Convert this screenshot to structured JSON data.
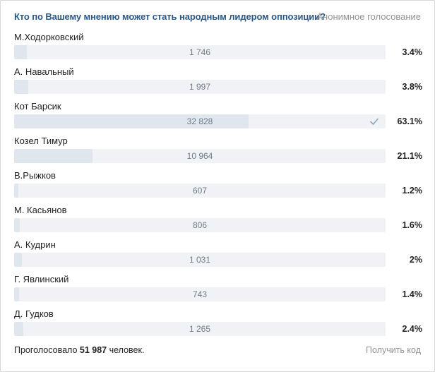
{
  "poll": {
    "question": "Кто по Вашему мнению может стать народным лидером оппозиции?",
    "type_label": "Анонимное голосование",
    "accent_color": "#2a5885",
    "options": [
      {
        "label": "М.Ходорковский",
        "votes": "1 746",
        "percent": "3.4%",
        "fraction": 0.034,
        "voted": false
      },
      {
        "label": "А. Навальный",
        "votes": "1 997",
        "percent": "3.8%",
        "fraction": 0.038,
        "voted": false
      },
      {
        "label": "Кот Барсик",
        "votes": "32 828",
        "percent": "63.1%",
        "fraction": 0.631,
        "voted": true
      },
      {
        "label": "Козел Тимур",
        "votes": "10 964",
        "percent": "21.1%",
        "fraction": 0.211,
        "voted": false
      },
      {
        "label": "В.Рыжков",
        "votes": "607",
        "percent": "1.2%",
        "fraction": 0.012,
        "voted": false
      },
      {
        "label": "М. Касьянов",
        "votes": "806",
        "percent": "1.6%",
        "fraction": 0.016,
        "voted": false
      },
      {
        "label": "А. Кудрин",
        "votes": "1 031",
        "percent": "2%",
        "fraction": 0.02,
        "voted": false
      },
      {
        "label": "Г. Явлинский",
        "votes": "743",
        "percent": "1.4%",
        "fraction": 0.014,
        "voted": false
      },
      {
        "label": "Д. Гудков",
        "votes": "1 265",
        "percent": "2.4%",
        "fraction": 0.024,
        "voted": false
      }
    ],
    "footer": {
      "total_prefix": "Проголосовало",
      "total_count": "51 987",
      "total_suffix": "человек.",
      "get_code_label": "Получить код"
    },
    "check_icon": "checkmark-icon"
  }
}
